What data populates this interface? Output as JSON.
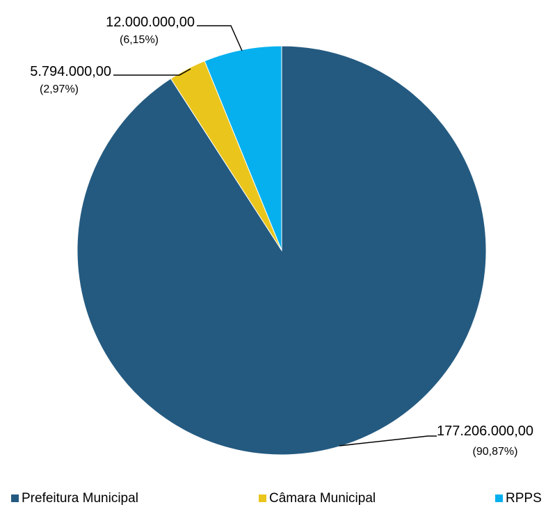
{
  "chart_data": {
    "type": "pie",
    "title": "",
    "legend_position": "bottom",
    "slices": [
      {
        "name": "Prefeitura Municipal",
        "value": 177206000,
        "value_label": "177.206.000,00",
        "percent_label": "(90,87%)",
        "color": "#245a80"
      },
      {
        "name": "Câmara Municipal",
        "value": 5794000,
        "value_label": "5.794.000,00",
        "percent_label": "(2,97%)",
        "color": "#eac51c"
      },
      {
        "name": "RPPS",
        "value": 12000000,
        "value_label": "12.000.000,00",
        "percent_label": "(6,15%)",
        "color": "#06b0ef"
      }
    ]
  }
}
